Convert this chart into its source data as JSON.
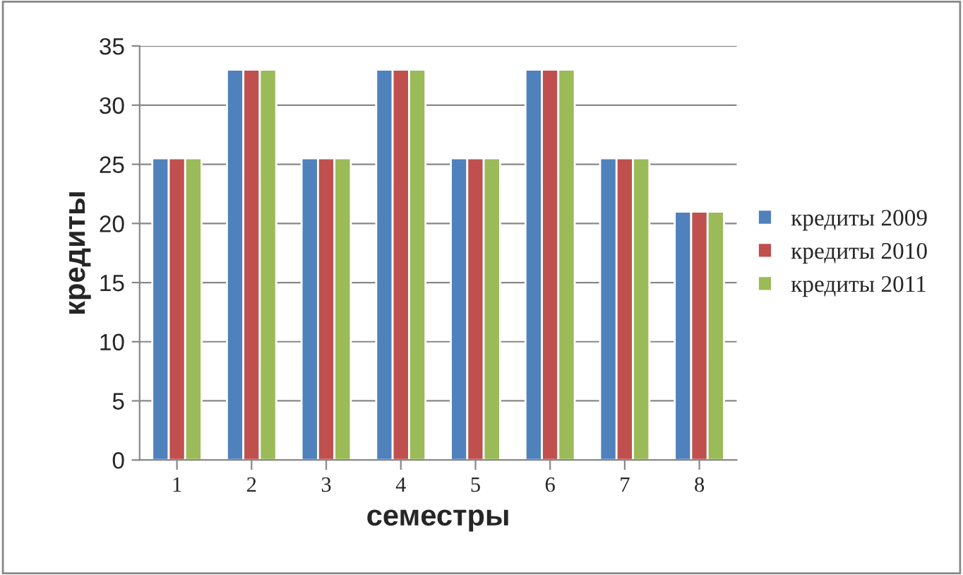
{
  "chart_data": {
    "type": "bar",
    "xlabel": "семестры",
    "ylabel": "кредиты",
    "categories": [
      "1",
      "2",
      "3",
      "4",
      "5",
      "6",
      "7",
      "8"
    ],
    "series": [
      {
        "name": "кредиты 2009",
        "color": "#4f81bd",
        "values": [
          25.5,
          33,
          25.5,
          33,
          25.5,
          33,
          25.5,
          21
        ]
      },
      {
        "name": "кредиты 2010",
        "color": "#c0504d",
        "values": [
          25.5,
          33,
          25.5,
          33,
          25.5,
          33,
          25.5,
          21
        ]
      },
      {
        "name": "кредиты 2011",
        "color": "#9bbb59",
        "values": [
          25.5,
          33,
          25.5,
          33,
          25.5,
          33,
          25.5,
          21
        ]
      }
    ],
    "ylim": [
      0,
      35
    ],
    "yticks": [
      0,
      5,
      10,
      15,
      20,
      25,
      30,
      35
    ],
    "grid": "y",
    "legend": "right"
  }
}
